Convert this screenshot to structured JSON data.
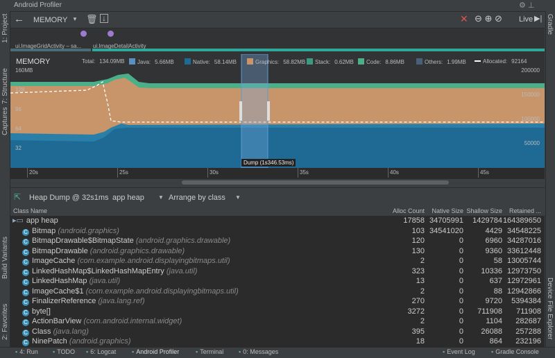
{
  "window_title": "Android Profiler",
  "side_tabs_left": [
    "1: Project",
    "7: Structure",
    "Captures",
    "Build Variants",
    "2: Favorites"
  ],
  "side_tabs_right": [
    "Gradle",
    "Device File Explorer"
  ],
  "toolbar": {
    "profiler": "MEMORY",
    "live": "Live"
  },
  "activities": [
    "ui.ImageGridActivity – sa...",
    "ui.ImageDetailActivity"
  ],
  "memory": {
    "title": "MEMORY",
    "legend": [
      {
        "label": "Total:",
        "value": "134.09MB"
      },
      {
        "label": "Java:",
        "value": "5.66MB",
        "color": "#5b8fc4"
      },
      {
        "label": "Native:",
        "value": "58.14MB",
        "color": "#1f6a94"
      },
      {
        "label": "Graphics:",
        "value": "58.82MB",
        "color": "#c8946a"
      },
      {
        "label": "Stack:",
        "value": "0.62MB",
        "color": "#3b9a80"
      },
      {
        "label": "Code:",
        "value": "8.86MB",
        "color": "#4bb08a"
      },
      {
        "label": "Others:",
        "value": "1.99MB",
        "color": "#4a6078"
      },
      {
        "label": "Allocated:",
        "value": "92164"
      }
    ],
    "left_axis": [
      "160MB",
      "128",
      "96",
      "64",
      "32"
    ],
    "right_axis": [
      "200000",
      "150000",
      "100000",
      "50000"
    ],
    "time_axis": [
      "20s",
      "25s",
      "30s",
      "35s",
      "40s",
      "45s"
    ],
    "dump_label": "Dump (1s346.53ms)"
  },
  "heap": {
    "capture": "Heap Dump @ 32s1ms",
    "heap": "app heap",
    "arrange": "Arrange by class"
  },
  "table": {
    "columns": [
      "Class Name",
      "Alloc Count",
      "Native Size",
      "Shallow Size",
      "Retained ..."
    ],
    "rows": [
      {
        "name": "app heap",
        "cells": [
          "17858",
          "34705991",
          "1429784",
          "164389650"
        ]
      },
      {
        "name": "Bitmap",
        "package": "(android.graphics)",
        "cells": [
          "103",
          "34541020",
          "4429",
          "34548225"
        ]
      },
      {
        "name": "BitmapDrawable$BitmapState",
        "package": "(android.graphics.drawable)",
        "cells": [
          "120",
          "0",
          "6960",
          "34287016"
        ]
      },
      {
        "name": "BitmapDrawable",
        "package": "(android.graphics.drawable)",
        "cells": [
          "130",
          "0",
          "9360",
          "33612448"
        ]
      },
      {
        "name": "ImageCache",
        "package": "(com.example.android.displayingbitmaps.util)",
        "cells": [
          "2",
          "0",
          "58",
          "13005744"
        ]
      },
      {
        "name": "LinkedHashMap$LinkedHashMapEntry",
        "package": "(java.util)",
        "cells": [
          "323",
          "0",
          "10336",
          "12973750"
        ]
      },
      {
        "name": "LinkedHashMap",
        "package": "(java.util)",
        "cells": [
          "13",
          "0",
          "637",
          "12972961"
        ]
      },
      {
        "name": "ImageCache$1",
        "package": "(com.example.android.displayingbitmaps.util)",
        "cells": [
          "2",
          "0",
          "88",
          "12942866"
        ]
      },
      {
        "name": "FinalizerReference",
        "package": "(java.lang.ref)",
        "cells": [
          "270",
          "0",
          "9720",
          "5394384"
        ]
      },
      {
        "name": "byte[]",
        "cells": [
          "3272",
          "0",
          "711908",
          "711908"
        ]
      },
      {
        "name": "ActionBarView",
        "package": "(com.android.internal.widget)",
        "cells": [
          "2",
          "0",
          "1104",
          "282687"
        ]
      },
      {
        "name": "Class",
        "package": "(java.lang)",
        "cells": [
          "395",
          "0",
          "26088",
          "257288"
        ]
      },
      {
        "name": "NinePatch",
        "package": "(android.graphics)",
        "cells": [
          "18",
          "0",
          "864",
          "232196"
        ]
      }
    ]
  },
  "status_bar": [
    "4: Run",
    "TODO",
    "6: Logcat",
    "Android Profiler",
    "Terminal",
    "0: Messages",
    "Event Log",
    "Gradle Console"
  ]
}
